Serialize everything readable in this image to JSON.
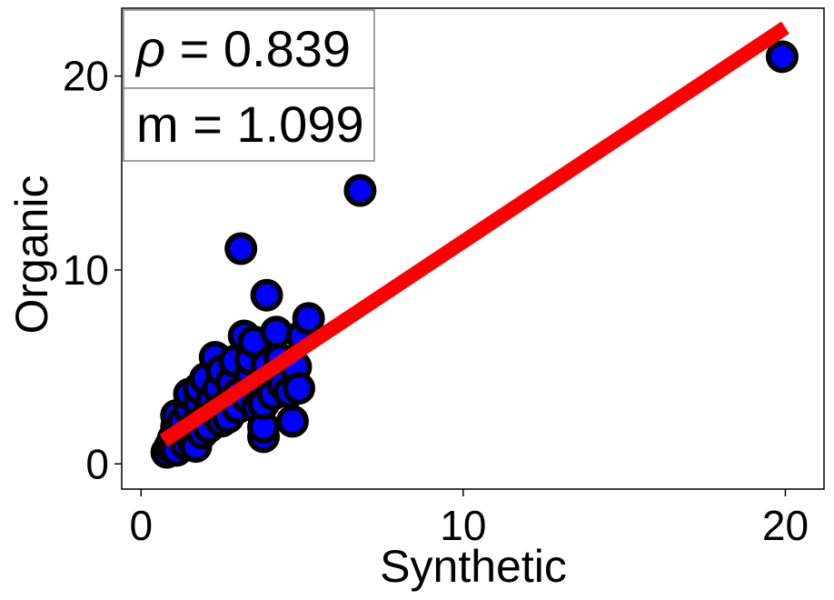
{
  "chart_data": {
    "type": "scatter",
    "xlabel": "Synthetic",
    "ylabel": "Organic",
    "xlim": [
      -0.6,
      21.2
    ],
    "ylim": [
      -1.3,
      23.5
    ],
    "xticks": [
      0,
      10,
      20
    ],
    "yticks": [
      0,
      10,
      20
    ],
    "grid": false,
    "colors": {
      "points": "#0000ff",
      "point_edge": "#000000",
      "fit_line": "#ff0000"
    },
    "annotations": [
      {
        "symbol": "ρ",
        "text": " = 0.839"
      },
      {
        "symbol": "",
        "text": "m = 1.099"
      }
    ],
    "fit_line": {
      "slope": 1.099,
      "x": [
        0.7,
        20.0
      ],
      "y": [
        1.2,
        22.5
      ]
    },
    "points": [
      {
        "x": 0.8,
        "y": 0.6
      },
      {
        "x": 0.9,
        "y": 0.9
      },
      {
        "x": 1.0,
        "y": 1.3
      },
      {
        "x": 1.1,
        "y": 0.7
      },
      {
        "x": 1.1,
        "y": 1.9
      },
      {
        "x": 1.1,
        "y": 2.5
      },
      {
        "x": 1.3,
        "y": 1.5
      },
      {
        "x": 1.3,
        "y": 2.2
      },
      {
        "x": 1.4,
        "y": 1.0
      },
      {
        "x": 1.5,
        "y": 2.8
      },
      {
        "x": 1.5,
        "y": 3.6
      },
      {
        "x": 1.6,
        "y": 1.2
      },
      {
        "x": 1.7,
        "y": 0.9
      },
      {
        "x": 1.7,
        "y": 2.0
      },
      {
        "x": 1.8,
        "y": 3.1
      },
      {
        "x": 1.8,
        "y": 3.9
      },
      {
        "x": 1.9,
        "y": 1.6
      },
      {
        "x": 2.0,
        "y": 2.4
      },
      {
        "x": 2.0,
        "y": 4.4
      },
      {
        "x": 2.1,
        "y": 1.9
      },
      {
        "x": 2.2,
        "y": 3.3
      },
      {
        "x": 2.3,
        "y": 5.5
      },
      {
        "x": 2.3,
        "y": 2.6
      },
      {
        "x": 2.4,
        "y": 3.9
      },
      {
        "x": 2.5,
        "y": 2.2
      },
      {
        "x": 2.5,
        "y": 4.8
      },
      {
        "x": 2.6,
        "y": 3.0
      },
      {
        "x": 2.7,
        "y": 2.4
      },
      {
        "x": 2.8,
        "y": 4.2
      },
      {
        "x": 2.9,
        "y": 5.3
      },
      {
        "x": 3.0,
        "y": 3.6
      },
      {
        "x": 3.0,
        "y": 2.9
      },
      {
        "x": 3.1,
        "y": 11.1
      },
      {
        "x": 3.2,
        "y": 6.6
      },
      {
        "x": 3.3,
        "y": 3.4
      },
      {
        "x": 3.4,
        "y": 4.6
      },
      {
        "x": 3.4,
        "y": 5.4
      },
      {
        "x": 3.5,
        "y": 6.3
      },
      {
        "x": 3.6,
        "y": 2.9
      },
      {
        "x": 3.7,
        "y": 4.0
      },
      {
        "x": 3.8,
        "y": 1.4
      },
      {
        "x": 3.8,
        "y": 1.9
      },
      {
        "x": 3.8,
        "y": 3.1
      },
      {
        "x": 3.9,
        "y": 8.7
      },
      {
        "x": 3.9,
        "y": 5.1
      },
      {
        "x": 4.0,
        "y": 4.3
      },
      {
        "x": 4.1,
        "y": 3.6
      },
      {
        "x": 4.2,
        "y": 6.8
      },
      {
        "x": 4.3,
        "y": 5.4
      },
      {
        "x": 4.4,
        "y": 4.1
      },
      {
        "x": 4.6,
        "y": 3.7
      },
      {
        "x": 4.7,
        "y": 2.2
      },
      {
        "x": 4.8,
        "y": 5.0
      },
      {
        "x": 4.9,
        "y": 3.9
      },
      {
        "x": 5.0,
        "y": 6.6
      },
      {
        "x": 5.2,
        "y": 7.5
      },
      {
        "x": 6.8,
        "y": 14.1
      },
      {
        "x": 19.9,
        "y": 21.0
      }
    ]
  }
}
